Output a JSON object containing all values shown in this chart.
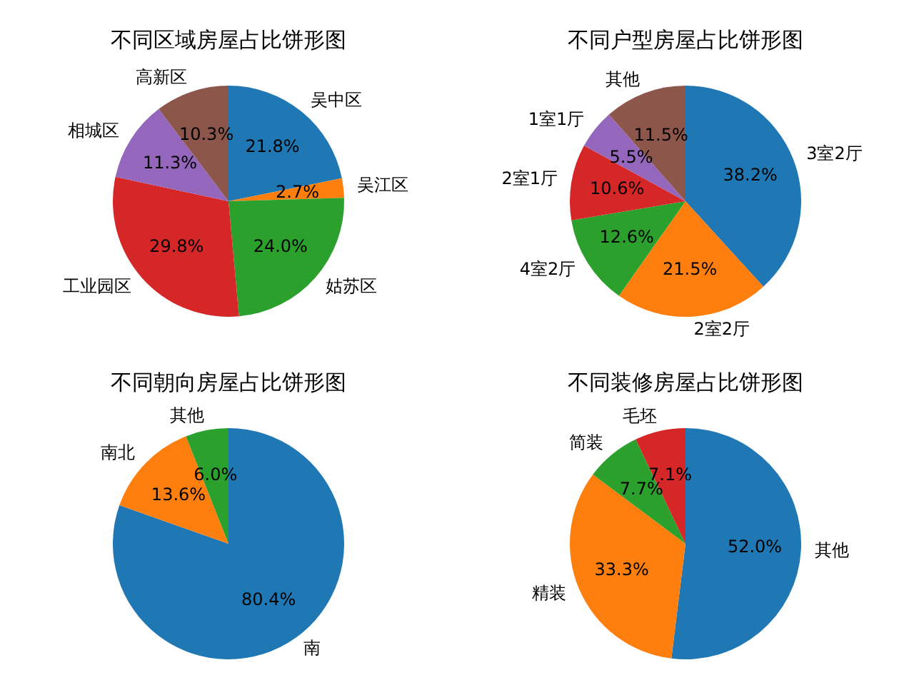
{
  "chart_data": [
    {
      "type": "pie",
      "title": "不同区域房屋占比饼形图",
      "categories": [
        "吴中区",
        "吴江区",
        "姑苏区",
        "工业园区",
        "相城区",
        "高新区"
      ],
      "values": [
        21.8,
        2.7,
        24.0,
        29.8,
        11.3,
        10.3
      ],
      "value_labels": [
        "21.8%",
        "2.7%",
        "24.0%",
        "29.8%",
        "11.3%",
        "10.3%"
      ],
      "colors": [
        "#1f77b4",
        "#ff7f0e",
        "#2ca02c",
        "#d62728",
        "#9467bd",
        "#8c564b"
      ]
    },
    {
      "type": "pie",
      "title": "不同户型房屋占比饼形图",
      "categories": [
        "3室2厅",
        "2室2厅",
        "4室2厅",
        "2室1厅",
        "1室1厅",
        "其他"
      ],
      "values": [
        38.2,
        21.5,
        12.6,
        10.6,
        5.5,
        11.5
      ],
      "value_labels": [
        "38.2%",
        "21.5%",
        "12.6%",
        "10.6%",
        "5.5%",
        "11.5%"
      ],
      "colors": [
        "#1f77b4",
        "#ff7f0e",
        "#2ca02c",
        "#d62728",
        "#9467bd",
        "#8c564b"
      ]
    },
    {
      "type": "pie",
      "title": "不同朝向房屋占比饼形图",
      "categories": [
        "南",
        "南北",
        "其他"
      ],
      "values": [
        80.4,
        13.6,
        6.0
      ],
      "value_labels": [
        "80.4%",
        "13.6%",
        "6.0%"
      ],
      "colors": [
        "#1f77b4",
        "#ff7f0e",
        "#2ca02c"
      ]
    },
    {
      "type": "pie",
      "title": "不同装修房屋占比饼形图",
      "categories": [
        "其他",
        "精装",
        "简装",
        "毛坯"
      ],
      "values": [
        52.0,
        33.3,
        7.7,
        7.1
      ],
      "value_labels": [
        "52.0%",
        "33.3%",
        "7.7%",
        "7.1%"
      ],
      "colors": [
        "#1f77b4",
        "#ff7f0e",
        "#2ca02c",
        "#d62728"
      ]
    }
  ]
}
